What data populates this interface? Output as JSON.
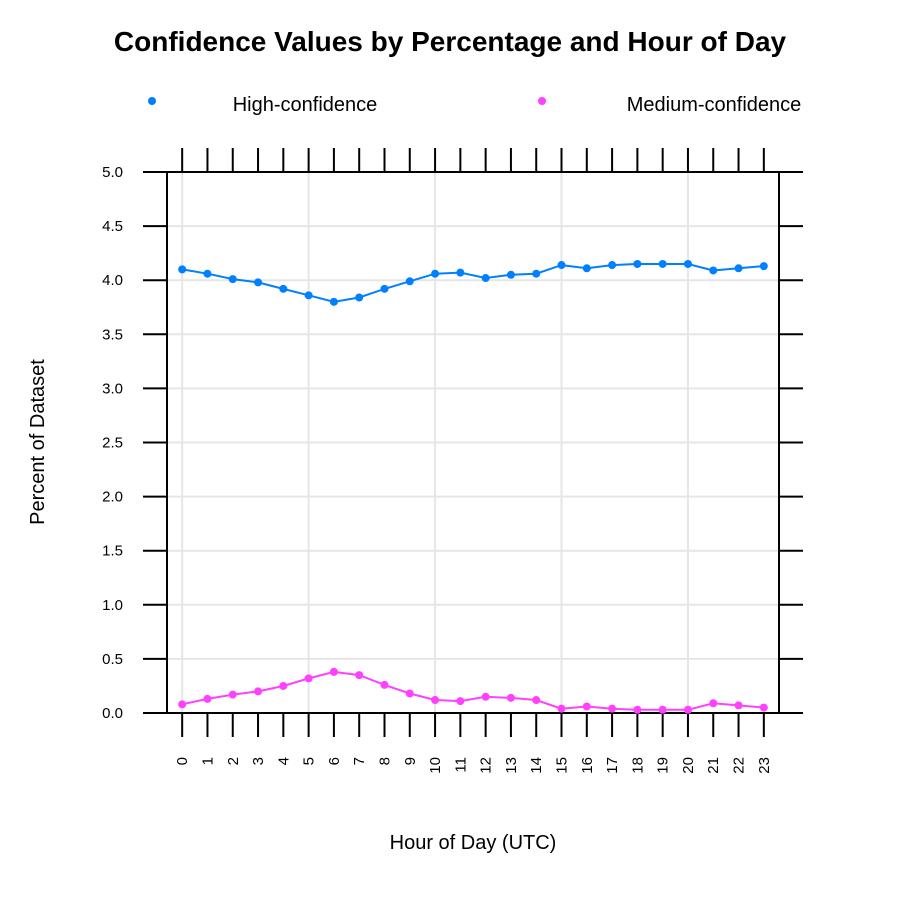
{
  "chart_data": {
    "type": "line",
    "title": "Confidence Values by Percentage and Hour of Day",
    "xlabel": "Hour of Day (UTC)",
    "ylabel": "Percent of Dataset",
    "ylim": [
      0,
      5
    ],
    "yticks": [
      "0.0",
      "0.5",
      "1.0",
      "1.5",
      "2.0",
      "2.5",
      "3.0",
      "3.5",
      "4.0",
      "4.5",
      "5.0"
    ],
    "x": [
      0,
      1,
      2,
      3,
      4,
      5,
      6,
      7,
      8,
      9,
      10,
      11,
      12,
      13,
      14,
      15,
      16,
      17,
      18,
      19,
      20,
      21,
      22,
      23
    ],
    "grid": true,
    "legend_position": "top",
    "series": [
      {
        "name": "High-confidence",
        "color": "#0080ff",
        "values": [
          4.1,
          4.06,
          4.01,
          3.98,
          3.92,
          3.86,
          3.8,
          3.84,
          3.92,
          3.99,
          4.06,
          4.07,
          4.02,
          4.05,
          4.06,
          4.14,
          4.11,
          4.14,
          4.15,
          4.15,
          4.15,
          4.09,
          4.11,
          4.13
        ]
      },
      {
        "name": "Medium-confidence",
        "color": "#ff40ff",
        "values": [
          0.08,
          0.13,
          0.17,
          0.2,
          0.25,
          0.32,
          0.38,
          0.35,
          0.26,
          0.18,
          0.12,
          0.11,
          0.15,
          0.14,
          0.12,
          0.04,
          0.06,
          0.04,
          0.03,
          0.03,
          0.03,
          0.09,
          0.07,
          0.05
        ]
      }
    ]
  }
}
